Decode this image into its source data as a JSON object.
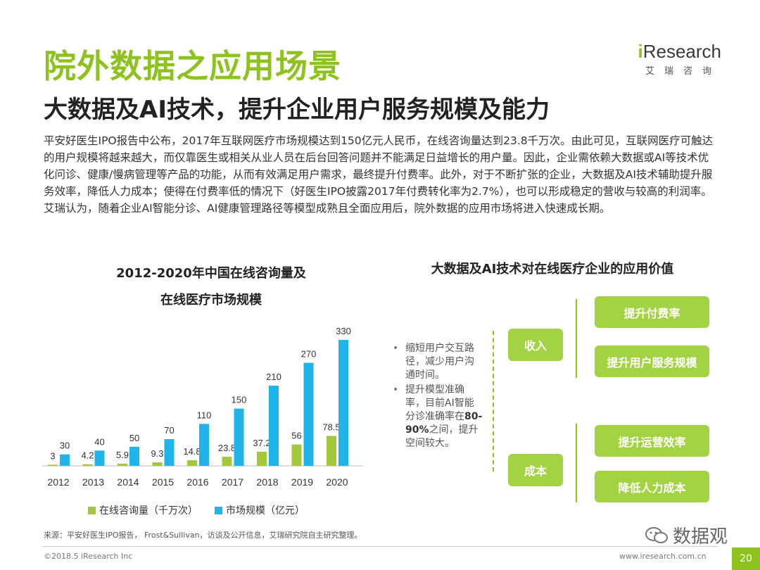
{
  "header": {
    "title": "院外数据之应用场景",
    "subtitle": "大数据及AI技术，提升企业用户服务规模及能力",
    "logo_i": "i",
    "logo_rest": "Research",
    "logo_cn": "艾瑞咨询"
  },
  "body_text": "平安好医生IPO报告中公布，2017年互联网医疗市场规模达到150亿元人民币，在线咨询量达到23.8千万次。由此可见，互联网医疗可触达的用户规模将越来越大，而仅靠医生或相关从业人员在后台回答问题并不能满足日益增长的用户量。因此，企业需依赖大数据或AI等技术优化问诊、健康/慢病管理等产品的功能，从而有效满足用户需求，最终提升付费率。此外，对于不断扩张的企业，大数据及AI技术辅助提升服务效率，降低人力成本；使得在付费率低的情况下（好医生IPO披露2017年付费转化率为2.7%），也可以形成稳定的营收与较高的利润率。艾瑞认为，随着企业AI智能分诊、AI健康管理路径等模型成熟且全面应用后，院外数据的应用市场将进入快速成长期。",
  "chart_data": {
    "type": "bar",
    "title": "2012-2020年中国在线咨询量及",
    "subtitle": "在线医疗市场规模",
    "categories": [
      "2012",
      "2013",
      "2014",
      "2015",
      "2016",
      "2017",
      "2018",
      "2019",
      "2020"
    ],
    "series": [
      {
        "name": "在线咨询量（千万次）",
        "color": "#a3c83a",
        "values": [
          3,
          4.2,
          5.9,
          9.3,
          14.8,
          23.8,
          37.2,
          56,
          78.5
        ]
      },
      {
        "name": "市场规模（亿元）",
        "color": "#1fb5ea",
        "values": [
          30,
          40,
          50,
          70,
          110,
          150,
          210,
          270,
          330
        ]
      }
    ],
    "ylim": [
      0,
      330
    ],
    "grid": false,
    "legend": "bottom"
  },
  "diagram": {
    "title": "大数据及AI技术对在线医疗企业的应用价值",
    "bullets": [
      {
        "text": "缩短用户交互路径，减少用户沟通时间。",
        "bold": ""
      },
      {
        "pre": "提升模型准确率，目前AI智能分诊准确率在",
        "bold": "80-90%",
        "post": "之间，提升空间较大。"
      }
    ],
    "income": "收入",
    "cost": "成本",
    "income_items": [
      "提升付费率",
      "提升用户服务规模"
    ],
    "cost_items": [
      "提升运营效率",
      "降低人力成本"
    ],
    "green": "#a3d343"
  },
  "footer": {
    "source": "来源：平安好医生IPO报告， Frost&Sullivan，访谈及公开信息，艾瑞研究院自主研究整理。",
    "copyright": "©2018.5 iResearch Inc",
    "site": "www.iresearch.com.cn",
    "page": "20",
    "watermark": "数据观"
  }
}
